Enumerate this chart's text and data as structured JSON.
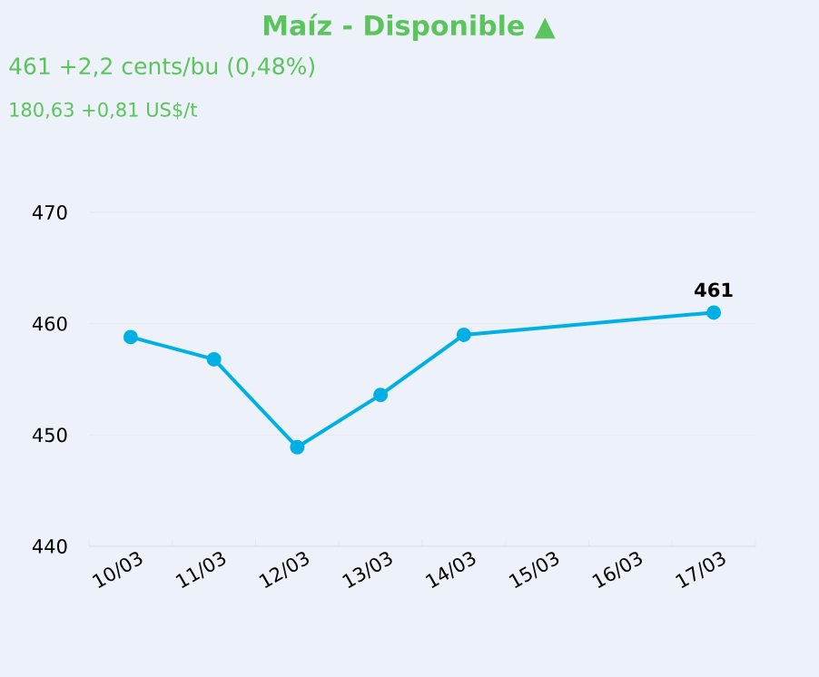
{
  "chart_data": {
    "type": "line",
    "title": "Maíz - Disponible ▲",
    "subtitle": "461 +2,2 cents/bu (0,48%)",
    "annotations": [
      "180,63 +0,81 US$/t"
    ],
    "categories": [
      "10/03",
      "11/03",
      "12/03",
      "13/03",
      "14/03",
      "15/03",
      "16/03",
      "17/03"
    ],
    "values": [
      458.8,
      456.8,
      448.9,
      453.6,
      459.0,
      null,
      null,
      461
    ],
    "value_labels": [
      null,
      null,
      null,
      null,
      null,
      null,
      null,
      "461"
    ],
    "color": "#00b0e4",
    "marker": "circle",
    "line_style": "solid",
    "grid": "y",
    "ylim": [
      440,
      470
    ],
    "yticks": [
      440,
      450,
      460,
      470
    ]
  }
}
